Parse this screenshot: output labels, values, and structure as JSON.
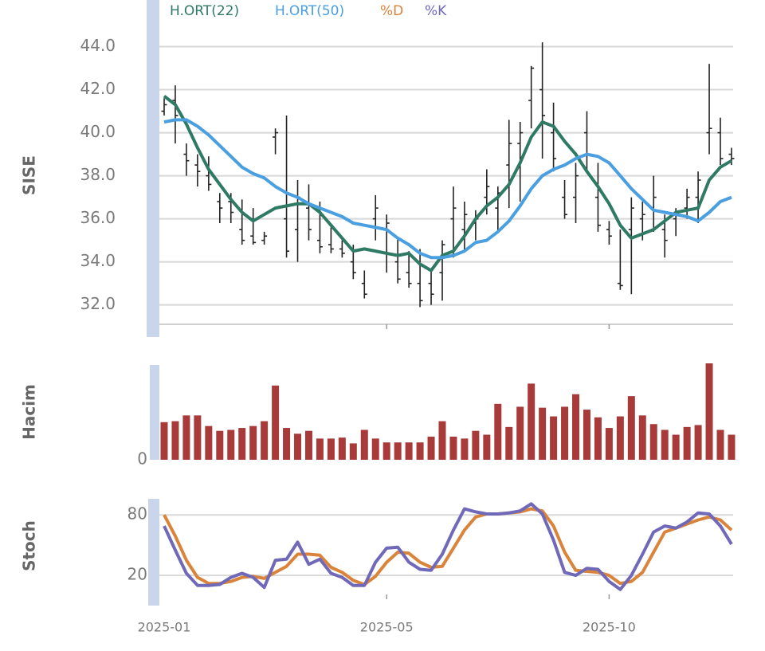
{
  "chart_data": [
    {
      "type": "ohlc",
      "y_label": "SISE",
      "color": "#222222",
      "open": [
        41.0,
        41.5,
        39.0,
        38.5,
        38.0,
        36.8,
        36.8,
        35.5,
        35.2,
        35.0,
        39.8,
        36.0,
        35.5,
        36.5,
        35.0,
        34.8,
        34.6,
        34.0,
        33.0,
        36.0,
        35.5,
        34.0,
        33.5,
        33.0,
        33.0,
        33.5,
        36.0,
        35.5,
        35.8,
        37.0,
        36.5,
        38.5,
        39.5,
        41.5,
        42.0,
        40.0,
        37.0,
        37.0,
        40.0,
        37.0,
        35.5,
        33.0,
        35.5,
        36.0,
        36.5,
        35.5,
        36.0,
        36.5,
        37.0,
        40.0,
        40.0,
        39.0
      ],
      "high": [
        41.6,
        42.2,
        39.5,
        39.0,
        38.9,
        37.2,
        37.2,
        36.9,
        36.5,
        35.4,
        40.2,
        40.8,
        37.8,
        37.6,
        36.8,
        35.6,
        35.0,
        34.8,
        33.6,
        37.1,
        36.2,
        35.1,
        34.5,
        34.6,
        33.6,
        35.0,
        37.5,
        36.8,
        36.4,
        38.3,
        37.5,
        40.6,
        40.5,
        43.1,
        44.2,
        41.4,
        37.8,
        38.6,
        41.0,
        38.6,
        35.9,
        35.5,
        37.0,
        36.8,
        38.0,
        36.2,
        36.5,
        37.4,
        38.2,
        43.2,
        40.7,
        39.3
      ],
      "low": [
        40.8,
        39.5,
        38.0,
        37.5,
        37.3,
        35.8,
        35.8,
        34.8,
        34.8,
        34.8,
        39.0,
        34.2,
        34.0,
        35.0,
        34.4,
        34.4,
        34.2,
        33.2,
        32.3,
        35.0,
        33.5,
        33.0,
        32.8,
        31.9,
        32.0,
        32.2,
        34.2,
        34.5,
        35.0,
        36.2,
        35.4,
        36.5,
        36.8,
        40.2,
        38.8,
        38.2,
        36.0,
        35.8,
        38.2,
        35.4,
        34.8,
        32.7,
        32.5,
        35.0,
        35.4,
        34.2,
        35.2,
        36.0,
        35.8,
        39.0,
        38.5,
        38.5
      ],
      "close": [
        41.3,
        40.8,
        38.7,
        38.2,
        37.6,
        36.5,
        36.3,
        35.0,
        34.9,
        35.2,
        40.0,
        34.5,
        37.0,
        35.5,
        34.7,
        34.6,
        34.4,
        33.5,
        32.5,
        36.5,
        35.8,
        33.2,
        33.0,
        32.2,
        32.5,
        34.8,
        36.5,
        36.2,
        36.0,
        37.5,
        37.2,
        39.5,
        40.0,
        43.0,
        40.8,
        38.8,
        36.2,
        38.0,
        39.0,
        35.7,
        35.2,
        32.9,
        36.5,
        36.2,
        37.0,
        35.0,
        36.3,
        37.0,
        37.8,
        40.2,
        38.8,
        38.8
      ],
      "lines": [
        {
          "name": "H.ORT(22)",
          "color": "#2f7a64",
          "values": [
            41.7,
            41.3,
            40.4,
            39.3,
            38.3,
            37.6,
            36.9,
            36.3,
            35.9,
            36.2,
            36.5,
            36.6,
            36.7,
            36.7,
            36.3,
            35.7,
            35.1,
            34.5,
            34.6,
            34.5,
            34.4,
            34.3,
            34.4,
            33.9,
            33.6,
            34.3,
            34.5,
            35.2,
            36.0,
            36.6,
            37.0,
            37.6,
            38.6,
            39.8,
            40.5,
            40.3,
            39.6,
            39.0,
            38.2,
            37.5,
            36.7,
            35.7,
            35.1,
            35.3,
            35.5,
            35.9,
            36.3,
            36.4,
            36.5,
            37.8,
            38.4,
            38.7
          ]
        },
        {
          "name": "H.ORT(50)",
          "color": "#4a9fe0",
          "values": [
            40.5,
            40.6,
            40.6,
            40.3,
            39.9,
            39.4,
            38.9,
            38.4,
            38.1,
            37.9,
            37.5,
            37.2,
            37.0,
            36.7,
            36.5,
            36.3,
            36.1,
            35.8,
            35.7,
            35.6,
            35.5,
            35.1,
            34.8,
            34.4,
            34.2,
            34.2,
            34.3,
            34.5,
            34.9,
            35.0,
            35.4,
            35.9,
            36.6,
            37.4,
            38.0,
            38.3,
            38.5,
            38.8,
            39.0,
            38.9,
            38.6,
            38.0,
            37.4,
            36.9,
            36.4,
            36.3,
            36.2,
            36.1,
            35.9,
            36.3,
            36.8,
            37.0
          ]
        }
      ],
      "ylim": [
        31.1,
        44.5
      ],
      "yticks": [
        {
          "value": 32,
          "label": "32.0"
        },
        {
          "value": 34,
          "label": "34.0"
        },
        {
          "value": 36,
          "label": "36.0"
        },
        {
          "value": 38,
          "label": "38.0"
        },
        {
          "value": 40,
          "label": "40.0"
        },
        {
          "value": 42,
          "label": "42.0"
        },
        {
          "value": 44,
          "label": "44.0"
        }
      ],
      "grid": true
    },
    {
      "type": "bar",
      "y_label": "Hacim",
      "color": "#a83a3a",
      "values": [
        39,
        40,
        46,
        46,
        35,
        30,
        31,
        33,
        35,
        40,
        77,
        33,
        27,
        30,
        22,
        22,
        23,
        17,
        31,
        22,
        18,
        18,
        18,
        18,
        24,
        40,
        24,
        22,
        30,
        26,
        58,
        34,
        55,
        79,
        54,
        45,
        55,
        68,
        52,
        44,
        33,
        45,
        66,
        46,
        37,
        31,
        26,
        34,
        36,
        100,
        31,
        26
      ],
      "ylim": [
        0,
        100
      ],
      "yticks": [
        0
      ]
    },
    {
      "type": "line",
      "y_label": "Stoch",
      "categories": [
        "2025-01",
        null,
        null,
        null,
        null,
        null,
        null,
        null,
        null,
        null,
        null,
        null,
        null,
        null,
        null,
        null,
        null,
        null,
        null,
        null,
        "2025-05",
        null,
        null,
        null,
        null,
        null,
        null,
        null,
        null,
        null,
        null,
        null,
        null,
        null,
        null,
        null,
        null,
        null,
        null,
        null,
        "2025-10",
        null,
        null,
        null,
        null,
        null,
        null,
        null,
        null,
        null,
        null,
        null
      ],
      "series": [
        {
          "name": "%D",
          "color": "#d9843a",
          "values": [
            80,
            59,
            35,
            18,
            12,
            12,
            14,
            18,
            19,
            17,
            23,
            29,
            41,
            41,
            40,
            28,
            23,
            15,
            11,
            19,
            33,
            43,
            42,
            33,
            28,
            29,
            47,
            65,
            78,
            81,
            81,
            82,
            83,
            86,
            84,
            69,
            43,
            25,
            24,
            23,
            20,
            12,
            14,
            23,
            43,
            63,
            67,
            71,
            75,
            78,
            75,
            65
          ]
        },
        {
          "name": "%K",
          "color": "#7068b8",
          "values": [
            69,
            45,
            22,
            10,
            10,
            11,
            18,
            22,
            18,
            8,
            35,
            36,
            53,
            31,
            36,
            22,
            18,
            10,
            10,
            33,
            47,
            48,
            33,
            26,
            25,
            41,
            65,
            86,
            83,
            81,
            81,
            82,
            84,
            91,
            81,
            55,
            23,
            20,
            27,
            26,
            14,
            6,
            20,
            41,
            63,
            69,
            67,
            73,
            82,
            81,
            69,
            51
          ]
        }
      ],
      "ylim": [
        -10,
        96
      ],
      "yticks": [
        20,
        80
      ],
      "grid": true
    }
  ]
}
